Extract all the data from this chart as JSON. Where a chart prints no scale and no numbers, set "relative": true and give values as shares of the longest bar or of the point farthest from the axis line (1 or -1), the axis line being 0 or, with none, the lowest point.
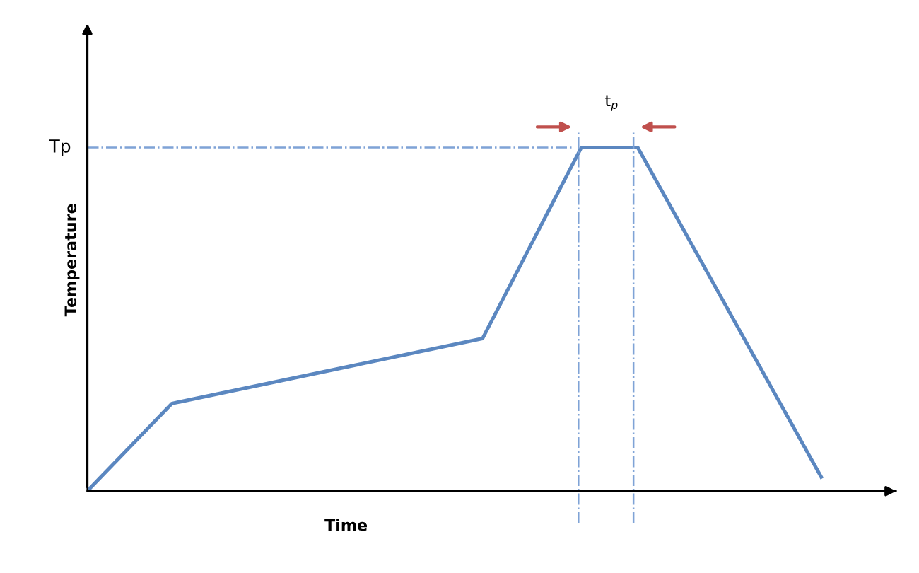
{
  "chart_data": {
    "type": "line",
    "relative": true,
    "xlabel": "Time",
    "ylabel": "Temperature",
    "categories": [
      null,
      null,
      null,
      null,
      null,
      null,
      null,
      null,
      null,
      null,
      null,
      null,
      null,
      null,
      null,
      null,
      null,
      null,
      null,
      null,
      null,
      null,
      null,
      null,
      null,
      null,
      null,
      null,
      null,
      null,
      null,
      null,
      null,
      null,
      null,
      null,
      null,
      null,
      null,
      null,
      null,
      null,
      null,
      null,
      null,
      null,
      null,
      null,
      null,
      null,
      null,
      null,
      null
    ],
    "series": [
      {
        "color": "#5b87c0",
        "values": [
          0,
          null,
          null,
          null,
          null,
          null,
          0.255,
          null,
          null,
          null,
          null,
          null,
          null,
          null,
          null,
          null,
          null,
          null,
          null,
          null,
          null,
          null,
          null,
          null,
          null,
          null,
          null,
          null,
          0.444,
          null,
          null,
          null,
          null,
          null,
          null,
          1,
          null,
          null,
          null,
          1,
          null,
          null,
          null,
          null,
          null,
          null,
          null,
          null,
          null,
          null,
          null,
          null,
          0.041
        ]
      }
    ],
    "annotations": [
      "Tp",
      "t$_{p}$"
    ],
    "marker": "none",
    "line_style": "solid"
  }
}
